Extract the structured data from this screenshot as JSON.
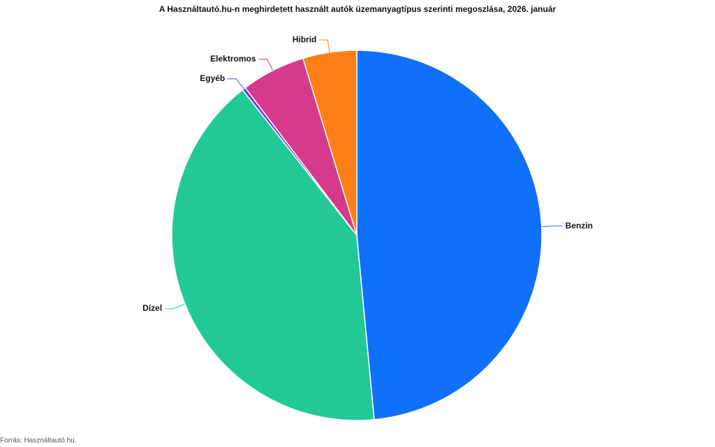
{
  "chart_data": {
    "type": "pie",
    "title": "A Használtautó.hu-n meghirdetett használt autók üzemanyagtípus szerinti megoszlása, 2026. január",
    "source": "Forrás: Használtautó.hu.",
    "categories": [
      "Benzin",
      "Dízel",
      "Egyéb",
      "Elektromos",
      "Hibrid"
    ],
    "values": [
      48.5,
      40.9,
      0.3,
      5.6,
      4.7
    ],
    "colors": [
      "#1170fa",
      "#22c997",
      "#6a3fd0",
      "#d63a8a",
      "#fd7f16"
    ]
  }
}
